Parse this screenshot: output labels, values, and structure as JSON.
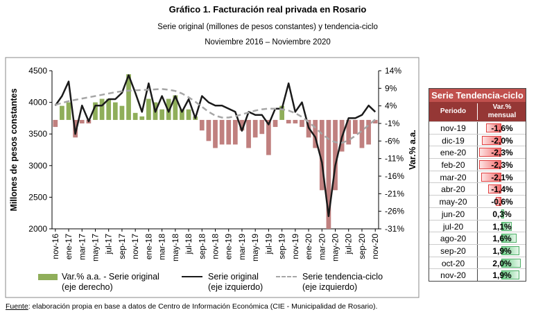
{
  "chart_data": {
    "type": "combo",
    "title": "Gráfico 1. Facturación real privada en Rosario",
    "subtitle": "Serie original (millones de pesos constantes) y tendencia-ciclo",
    "period": "Noviembre 2016 – Noviembre 2020",
    "y_label": "Millones de pesos constantes",
    "y2_label": "Var.% a.a.",
    "categories": [
      "nov-16",
      null,
      "ene-17",
      null,
      "mar-17",
      null,
      "may-17",
      null,
      "jul-17",
      null,
      "sep-17",
      null,
      "nov-17",
      null,
      "ene-18",
      null,
      "mar-18",
      null,
      "may-18",
      null,
      "jul-18",
      null,
      "sep-18",
      null,
      "nov-18",
      null,
      "ene-19",
      null,
      "mar-19",
      null,
      "may-19",
      null,
      "jul-19",
      null,
      "sep-19",
      null,
      "nov-19",
      null,
      "ene-20",
      null,
      "mar-20",
      null,
      "may-20",
      null,
      "jul-20",
      null,
      "sep-20",
      null,
      "nov-20"
    ],
    "ylim": [
      2000,
      4500
    ],
    "yticks": [
      2000,
      2500,
      3000,
      3500,
      4000,
      4500
    ],
    "y2lim": [
      -31,
      14
    ],
    "y2ticks": [
      {
        "value": -31,
        "label": "-31%"
      },
      {
        "value": -26,
        "label": "-26%"
      },
      {
        "value": -21,
        "label": "-21%"
      },
      {
        "value": -16,
        "label": "-16%"
      },
      {
        "value": -11,
        "label": "-11%"
      },
      {
        "value": -6,
        "label": "-6%"
      },
      {
        "value": -1,
        "label": "-1%"
      },
      {
        "value": 4,
        "label": "4%"
      },
      {
        "value": 9,
        "label": "9%"
      },
      {
        "value": 14,
        "label": "14%"
      }
    ],
    "series": [
      {
        "name": "Var.% a.a. - Serie original\n(eje derecho)",
        "kind": "bar",
        "axis": "y2",
        "color": "#8fae5a",
        "negative_color": "#c0807f",
        "values": [
          -2,
          4,
          5,
          -5,
          -1,
          -1,
          5,
          6,
          6,
          5,
          4,
          13,
          2,
          1,
          6,
          5,
          3,
          6,
          7,
          3,
          3,
          1,
          -3,
          -6,
          -8,
          -7,
          -7,
          -7,
          -3,
          -8,
          -5,
          -4,
          -10,
          -2,
          4,
          -1,
          -1,
          -2,
          -5,
          -8,
          -20,
          -31,
          -20,
          -9,
          -7,
          -4,
          -8,
          -7,
          -1
        ]
      },
      {
        "name": "Serie original\n(eje izquierdo)",
        "kind": "line",
        "color": "#1a1a1a",
        "values": [
          3950,
          4100,
          4330,
          3500,
          3950,
          3700,
          3950,
          3950,
          4050,
          4050,
          4150,
          4430,
          4150,
          3850,
          4300,
          3850,
          4100,
          3850,
          4100,
          3850,
          4050,
          3750,
          4100,
          4000,
          3950,
          3950,
          3900,
          3850,
          3550,
          3850,
          3800,
          3800,
          3650,
          3900,
          3900,
          4300,
          3850,
          4000,
          3600,
          3450,
          3050,
          2200,
          3000,
          3450,
          3750,
          3750,
          3800,
          3950,
          3850
        ]
      },
      {
        "name": "Serie tendencia-ciclo\n(eje izquierdo)",
        "kind": "line",
        "dash": true,
        "color": "#a6a6a6",
        "values": [
          3960,
          3990,
          4020,
          4040,
          4060,
          4080,
          4100,
          4120,
          4140,
          4160,
          4175,
          4185,
          4190,
          4195,
          4200,
          4205,
          4210,
          4200,
          4180,
          4140,
          4080,
          4010,
          3930,
          3850,
          3790,
          3760,
          3760,
          3780,
          3810,
          3840,
          3870,
          3890,
          3900,
          3900,
          3890,
          3870,
          3830,
          3770,
          3690,
          3600,
          3500,
          3420,
          3370,
          3360,
          3400,
          3470,
          3550,
          3640,
          3730
        ]
      }
    ]
  },
  "table": {
    "title": "Serie Tendencia-ciclo",
    "col1": "Periodo",
    "col2": "Var.%\nmensual",
    "rows": [
      {
        "period": "nov-19",
        "value": -1.6,
        "label": "-1,6%"
      },
      {
        "period": "dic-19",
        "value": -2.0,
        "label": "-2,0%"
      },
      {
        "period": "ene-20",
        "value": -2.3,
        "label": "-2,3%"
      },
      {
        "period": "feb-20",
        "value": -2.3,
        "label": "-2,3%"
      },
      {
        "period": "mar-20",
        "value": -2.1,
        "label": "-2,1%"
      },
      {
        "period": "abr-20",
        "value": -1.4,
        "label": "-1,4%"
      },
      {
        "period": "may-20",
        "value": -0.6,
        "label": "-0,6%"
      },
      {
        "period": "jun-20",
        "value": 0.3,
        "label": "0,3%"
      },
      {
        "period": "jul-20",
        "value": 1.1,
        "label": "1,1%"
      },
      {
        "period": "ago-20",
        "value": 1.6,
        "label": "1,6%"
      },
      {
        "period": "sep-20",
        "value": 1.9,
        "label": "1,9%"
      },
      {
        "period": "oct-20",
        "value": 2.0,
        "label": "2,0%"
      },
      {
        "period": "nov-20",
        "value": 1.9,
        "label": "1,9%"
      }
    ]
  },
  "source": {
    "label": "Fuente",
    "text": ": elaboración propia en base a datos de Centro de Información Económica (CIE - Municipalidad de Rosario)."
  }
}
